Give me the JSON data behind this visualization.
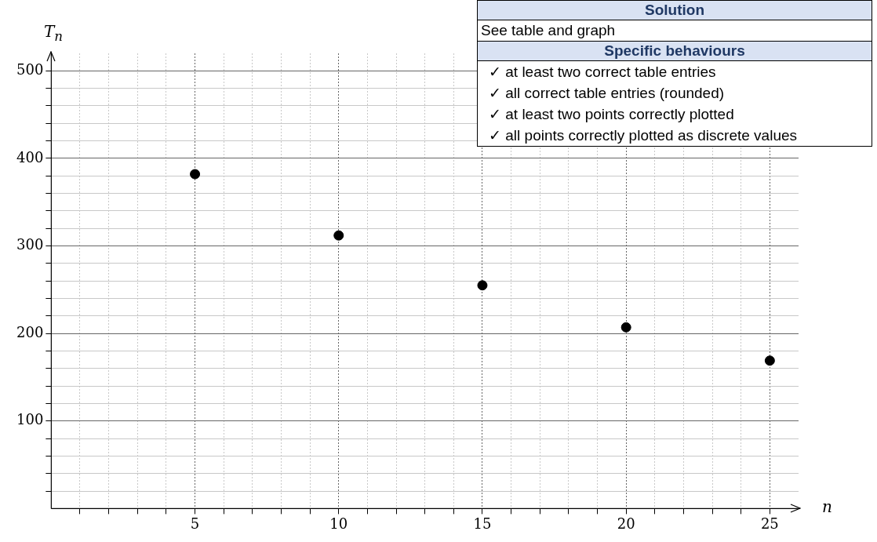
{
  "chart_data": {
    "type": "scatter",
    "xlabel": "n",
    "ylabel": "T$_{n}$",
    "x": [
      5,
      10,
      15,
      20,
      25
    ],
    "series": [
      {
        "color": "#000000",
        "values": [
          382,
          312,
          255,
          207,
          169
        ]
      }
    ],
    "xlim": [
      0,
      26
    ],
    "ylim": [
      0,
      520
    ],
    "xticks": [
      {
        "value": 1,
        "label": null
      },
      {
        "value": 2,
        "label": null
      },
      {
        "value": 3,
        "label": null
      },
      {
        "value": 4,
        "label": null
      },
      5,
      {
        "value": 6,
        "label": null
      },
      {
        "value": 7,
        "label": null
      },
      {
        "value": 8,
        "label": null
      },
      {
        "value": 9,
        "label": null
      },
      10,
      {
        "value": 11,
        "label": null
      },
      {
        "value": 12,
        "label": null
      },
      {
        "value": 13,
        "label": null
      },
      {
        "value": 14,
        "label": null
      },
      15,
      {
        "value": 16,
        "label": null
      },
      {
        "value": 17,
        "label": null
      },
      {
        "value": 18,
        "label": null
      },
      {
        "value": 19,
        "label": null
      },
      20,
      {
        "value": 21,
        "label": null
      },
      {
        "value": 22,
        "label": null
      },
      {
        "value": 23,
        "label": null
      },
      {
        "value": 24,
        "label": null
      },
      25
    ],
    "yticks": [
      {
        "value": 20,
        "label": null
      },
      {
        "value": 40,
        "label": null
      },
      {
        "value": 60,
        "label": null
      },
      {
        "value": 80,
        "label": null
      },
      100,
      {
        "value": 120,
        "label": null
      },
      {
        "value": 140,
        "label": null
      },
      {
        "value": 160,
        "label": null
      },
      {
        "value": 180,
        "label": null
      },
      200,
      {
        "value": 220,
        "label": null
      },
      {
        "value": 240,
        "label": null
      },
      {
        "value": 260,
        "label": null
      },
      {
        "value": 280,
        "label": null
      },
      300,
      {
        "value": 320,
        "label": null
      },
      {
        "value": 340,
        "label": null
      },
      {
        "value": 360,
        "label": null
      },
      {
        "value": 380,
        "label": null
      },
      400,
      {
        "value": 420,
        "label": null
      },
      {
        "value": 440,
        "label": null
      },
      {
        "value": 460,
        "label": null
      },
      {
        "value": 480,
        "label": null
      },
      500
    ],
    "grid": true,
    "marker": "circle",
    "annotations": [
      "Solution",
      "See table and graph",
      "Specific behaviours",
      "✓ at least two correct table entries",
      "✓ all correct table entries (rounded)",
      "✓ at least two points correctly plotted",
      "✓ all points correctly plotted as discrete values"
    ]
  }
}
